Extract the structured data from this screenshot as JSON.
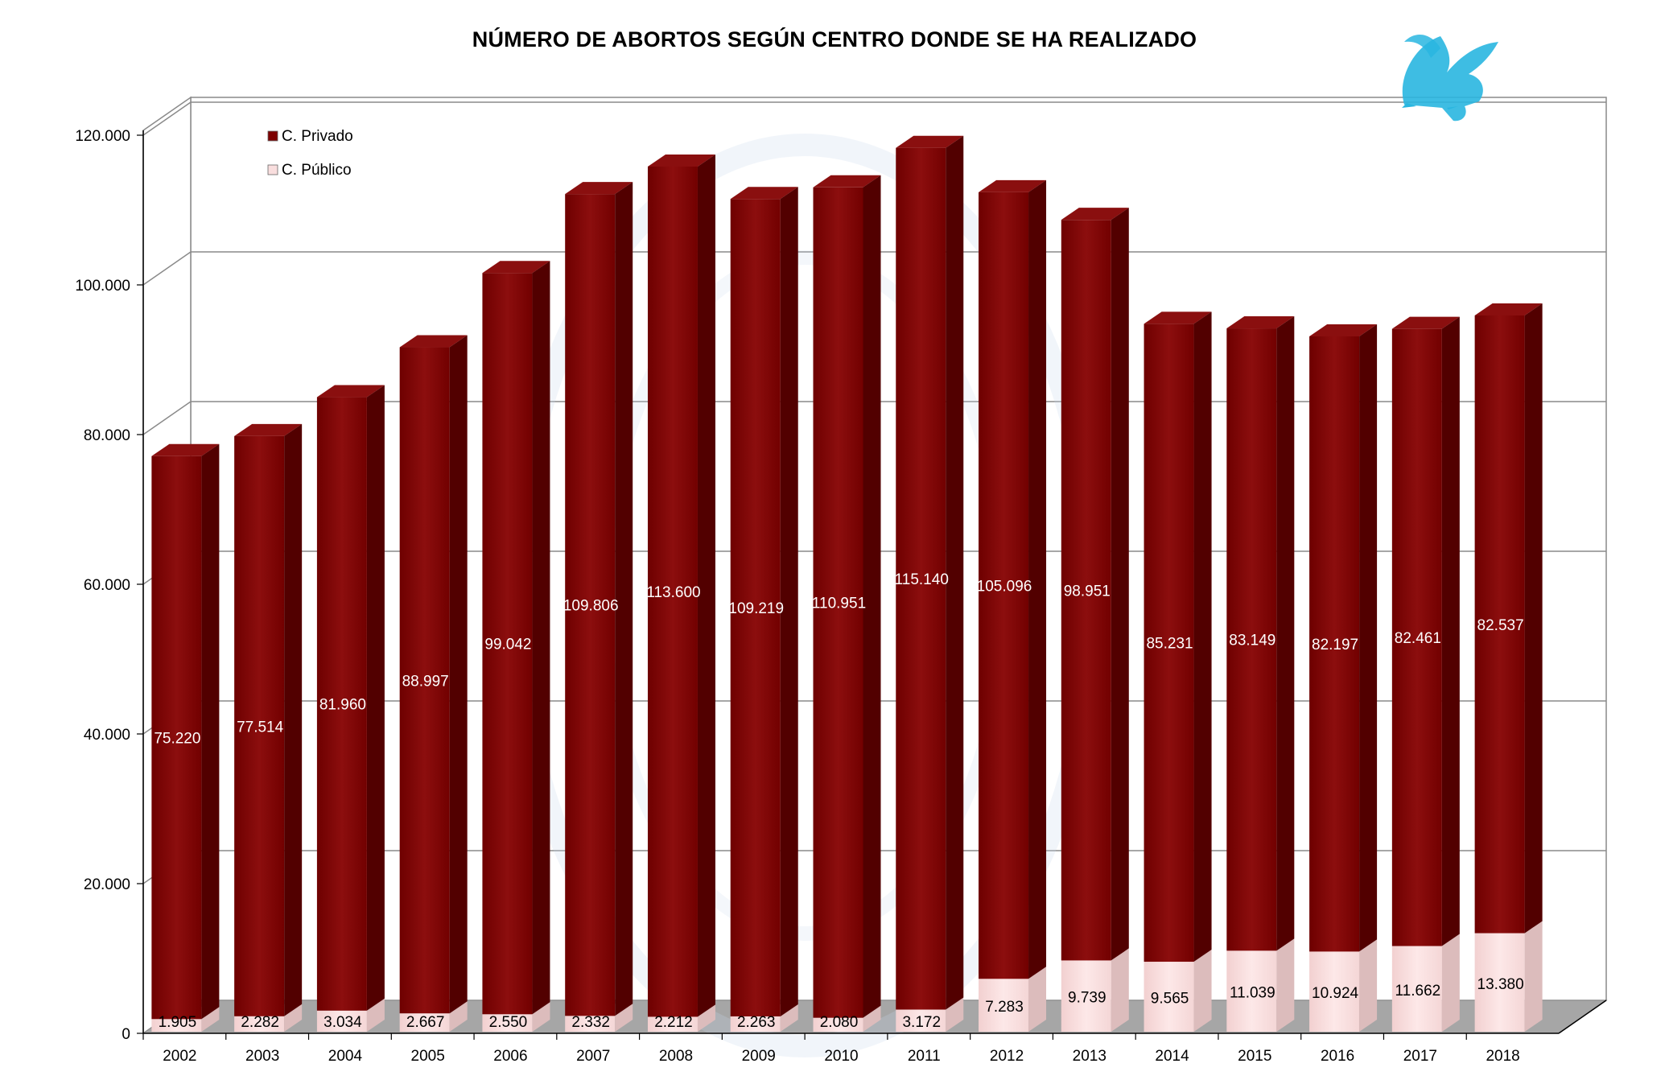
{
  "chart_data": {
    "type": "bar",
    "stacked": true,
    "three_d": true,
    "title": "NÚMERO DE ABORTOS SEGÚN CENTRO DONDE SE HA REALIZADO",
    "xlabel": "",
    "ylabel": "",
    "categories": [
      "2002",
      "2003",
      "2004",
      "2005",
      "2006",
      "2007",
      "2008",
      "2009",
      "2010",
      "2011",
      "2012",
      "2013",
      "2014",
      "2015",
      "2016",
      "2017",
      "2018"
    ],
    "series": [
      {
        "name": "C. Público",
        "color": "#f9dede",
        "values": [
          1905,
          2282,
          3034,
          2667,
          2550,
          2332,
          2212,
          2263,
          2080,
          3172,
          7283,
          9739,
          9565,
          11039,
          10924,
          11662,
          13380
        ],
        "labels": [
          "1.905",
          "2.282",
          "3.034",
          "2.667",
          "2.550",
          "2.332",
          "2.212",
          "2.263",
          "2.080",
          "3.172",
          "7.283",
          "9.739",
          "9.565",
          "11.039",
          "10.924",
          "11.662",
          "13.380"
        ]
      },
      {
        "name": "C. Privado",
        "color": "#7d0000",
        "values": [
          75220,
          77514,
          81960,
          88997,
          99042,
          109806,
          113600,
          109219,
          110951,
          115140,
          105096,
          98951,
          85231,
          83149,
          82197,
          82461,
          82537
        ],
        "labels": [
          "75.220",
          "77.514",
          "81.960",
          "88.997",
          "99.042",
          "109.806",
          "113.600",
          "109.219",
          "110.951",
          "115.140",
          "105.096",
          "98.951",
          "85.231",
          "83.149",
          "82.197",
          "82.461",
          "82.537"
        ]
      }
    ],
    "ylim": [
      0,
      120000
    ],
    "yticks": [
      0,
      20000,
      40000,
      60000,
      80000,
      100000,
      120000
    ],
    "ytick_labels": [
      "0",
      "20.000",
      "40.000",
      "60.000",
      "80.000",
      "100.000",
      "120.000"
    ],
    "grid": true,
    "legend": {
      "position": "top-left",
      "entries": [
        "C. Privado",
        "C. Público"
      ]
    }
  },
  "logo": {
    "icon": "griffin-logo-icon",
    "color": "#29b6e0"
  }
}
